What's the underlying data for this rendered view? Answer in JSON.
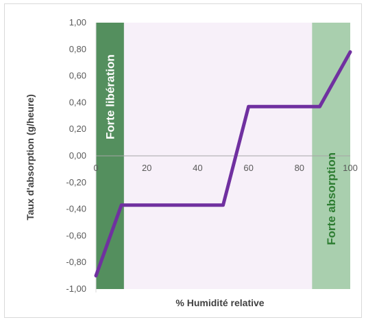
{
  "chart_data": {
    "type": "line",
    "xlabel": "% Humidité relative",
    "ylabel": "Taux d'absorption (g/heure)",
    "xlim": [
      0,
      100
    ],
    "ylim": [
      -1.0,
      1.0
    ],
    "x_ticks": [
      "0",
      "20",
      "40",
      "60",
      "80",
      "100"
    ],
    "y_ticks": [
      "1,00",
      "0,80",
      "0,60",
      "0,40",
      "0,20",
      "0,00",
      "-0,20",
      "-0,40",
      "-0,60",
      "-0,80",
      "-1,00"
    ],
    "series": [
      {
        "color": "#7030a0",
        "x": [
          0,
          10,
          50,
          60,
          88,
          100
        ],
        "y": [
          -0.9,
          -0.37,
          -0.37,
          0.37,
          0.37,
          0.78
        ]
      }
    ],
    "bands": [
      {
        "label": "Forte libération",
        "x_range": [
          0,
          11
        ],
        "color": "#548f5e"
      },
      {
        "label": "Forte absorption",
        "x_range": [
          85,
          100
        ],
        "color": "#a9cfae"
      }
    ],
    "plot_background": "#f7f0f9",
    "grid": false
  }
}
